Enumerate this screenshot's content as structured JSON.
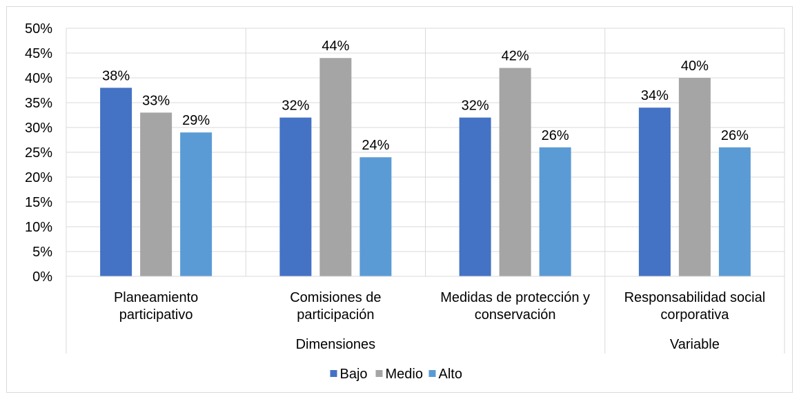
{
  "chart_data": {
    "type": "bar",
    "groups": [
      {
        "label": "Dimensiones",
        "size": 3
      },
      {
        "label": "Variable",
        "size": 1
      }
    ],
    "categories": [
      [
        "Planeamiento",
        "participativo"
      ],
      [
        "Comisiones de",
        "participación"
      ],
      [
        "Medidas de protección y",
        "conservación"
      ],
      [
        "Responsabilidad social",
        "corporativa"
      ]
    ],
    "series": [
      {
        "name": "Bajo",
        "color": "#4472C4",
        "values": [
          38,
          32,
          32,
          34
        ],
        "labels": [
          "38%",
          "32%",
          "32%",
          "34%"
        ]
      },
      {
        "name": "Medio",
        "color": "#A5A5A5",
        "values": [
          33,
          44,
          42,
          40
        ],
        "labels": [
          "33%",
          "44%",
          "42%",
          "40%"
        ]
      },
      {
        "name": "Alto",
        "color": "#5B9BD5",
        "values": [
          29,
          24,
          26,
          26
        ],
        "labels": [
          "29%",
          "24%",
          "26%",
          "26%"
        ]
      }
    ],
    "ylim": [
      0,
      50
    ],
    "yticks": [
      0,
      5,
      10,
      15,
      20,
      25,
      30,
      35,
      40,
      45,
      50
    ],
    "ytick_labels": [
      "0%",
      "5%",
      "10%",
      "15%",
      "20%",
      "25%",
      "30%",
      "35%",
      "40%",
      "45%",
      "50%"
    ],
    "grid": true,
    "legend": "bottom",
    "title": "",
    "xlabel": "",
    "ylabel": ""
  }
}
